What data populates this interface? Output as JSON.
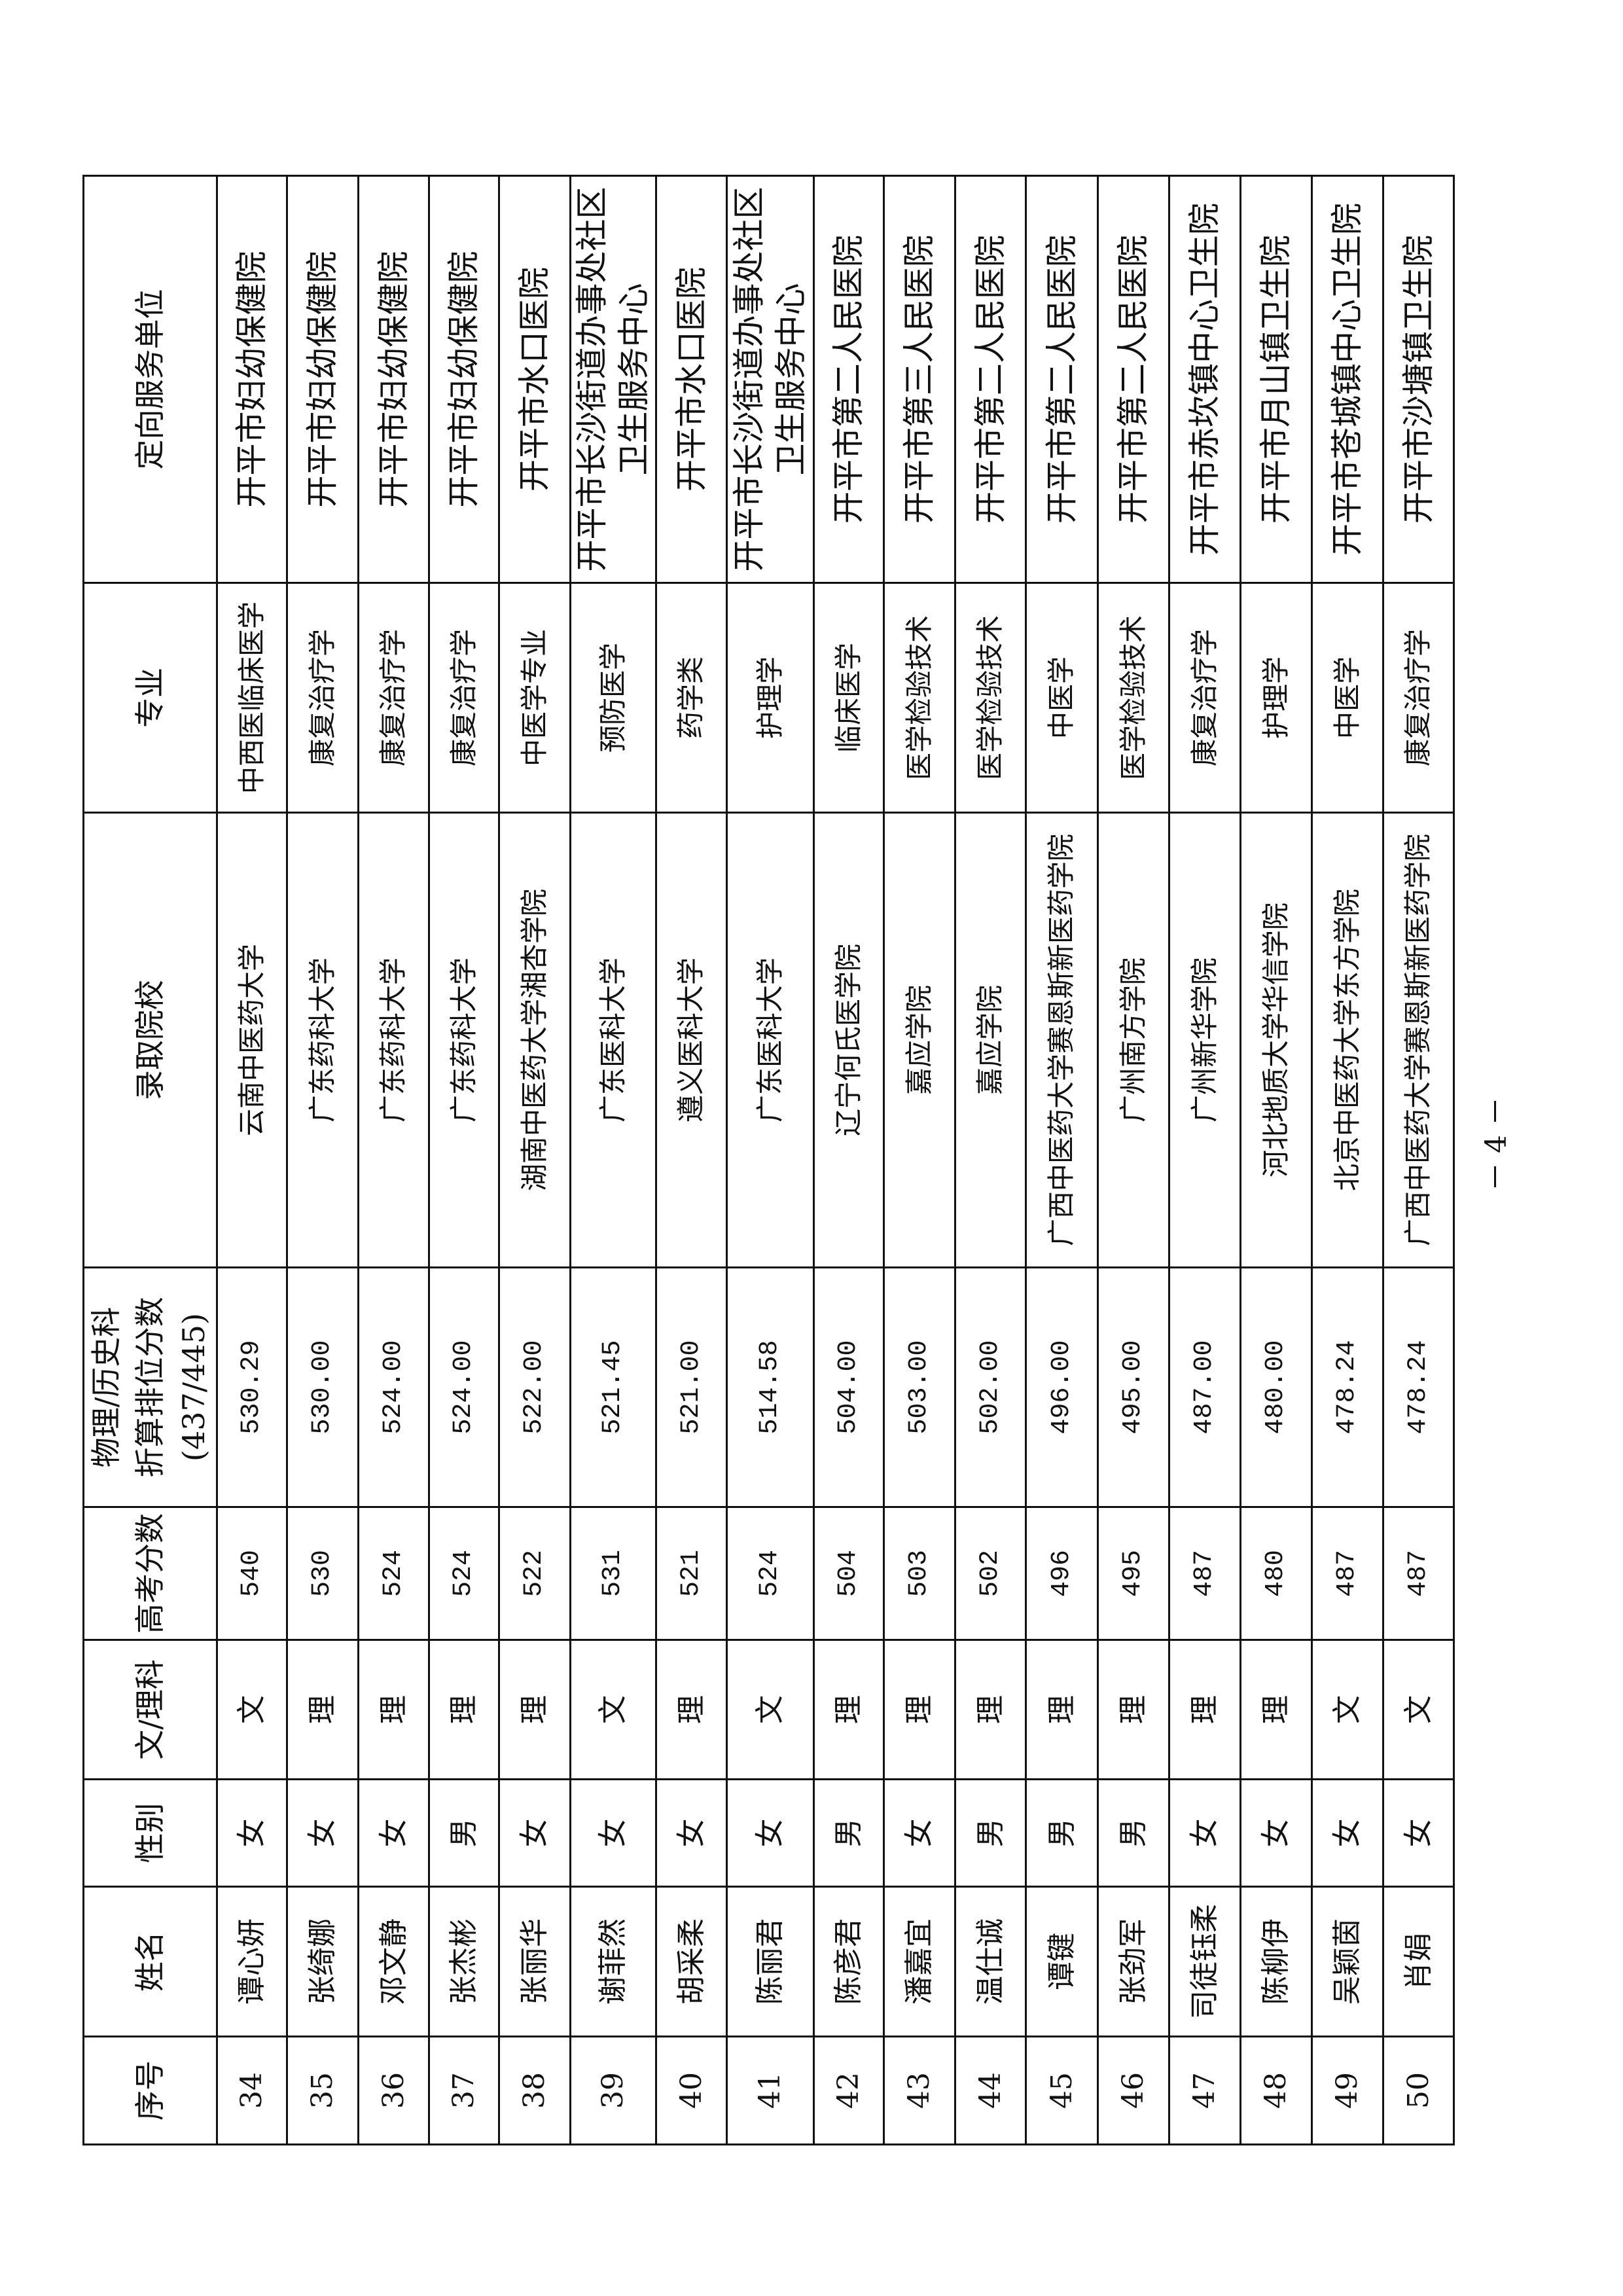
{
  "table": {
    "headers": {
      "index": "序号",
      "name": "姓名",
      "gender": "性别",
      "track": "文/理科",
      "score": "高考分数",
      "converted_line1": "物理/历史科",
      "converted_line2": "折算排位分数",
      "converted_line3": "(437/445)",
      "school": "录取院校",
      "major": "专业",
      "unit": "定向服务单位"
    },
    "rows": [
      {
        "index": "34",
        "name": "谭心妍",
        "gender": "女",
        "track": "文",
        "score": "540",
        "converted": "530.29",
        "school": "云南中医药大学",
        "major": "中西医临床医学",
        "unit": "开平市妇幼保健院"
      },
      {
        "index": "35",
        "name": "张绮娜",
        "gender": "女",
        "track": "理",
        "score": "530",
        "converted": "530.00",
        "school": "广东药科大学",
        "major": "康复治疗学",
        "unit": "开平市妇幼保健院"
      },
      {
        "index": "36",
        "name": "邓文静",
        "gender": "女",
        "track": "理",
        "score": "524",
        "converted": "524.00",
        "school": "广东药科大学",
        "major": "康复治疗学",
        "unit": "开平市妇幼保健院"
      },
      {
        "index": "37",
        "name": "张杰彬",
        "gender": "男",
        "track": "理",
        "score": "524",
        "converted": "524.00",
        "school": "广东药科大学",
        "major": "康复治疗学",
        "unit": "开平市妇幼保健院"
      },
      {
        "index": "38",
        "name": "张丽华",
        "gender": "女",
        "track": "理",
        "score": "522",
        "converted": "522.00",
        "school": "湖南中医药大学湘杏学院",
        "major": "中医学专业",
        "unit": "开平市水口医院"
      },
      {
        "index": "39",
        "name": "谢菲然",
        "gender": "女",
        "track": "文",
        "score": "531",
        "converted": "521.45",
        "school": "广东医科大学",
        "major": "预防医学",
        "unit": "开平市长沙街道办事处社区卫生服务中心"
      },
      {
        "index": "40",
        "name": "胡采柔",
        "gender": "女",
        "track": "理",
        "score": "521",
        "converted": "521.00",
        "school": "遵义医科大学",
        "major": "药学类",
        "unit": "开平市水口医院"
      },
      {
        "index": "41",
        "name": "陈丽君",
        "gender": "女",
        "track": "文",
        "score": "524",
        "converted": "514.58",
        "school": "广东医科大学",
        "major": "护理学",
        "unit": "开平市长沙街道办事处社区卫生服务中心"
      },
      {
        "index": "42",
        "name": "陈彦君",
        "gender": "男",
        "track": "理",
        "score": "504",
        "converted": "504.00",
        "school": "辽宁何氏医学院",
        "major": "临床医学",
        "unit": "开平市第二人民医院"
      },
      {
        "index": "43",
        "name": "潘嘉宜",
        "gender": "女",
        "track": "理",
        "score": "503",
        "converted": "503.00",
        "school": "嘉应学院",
        "major": "医学检验技术",
        "unit": "开平市第三人民医院"
      },
      {
        "index": "44",
        "name": "温仕诚",
        "gender": "男",
        "track": "理",
        "score": "502",
        "converted": "502.00",
        "school": "嘉应学院",
        "major": "医学检验技术",
        "unit": "开平市第二人民医院"
      },
      {
        "index": "45",
        "name": "谭键",
        "gender": "男",
        "track": "理",
        "score": "496",
        "converted": "496.00",
        "school": "广西中医药大学赛恩斯新医药学院",
        "major": "中医学",
        "unit": "开平市第二人民医院"
      },
      {
        "index": "46",
        "name": "张劲军",
        "gender": "男",
        "track": "理",
        "score": "495",
        "converted": "495.00",
        "school": "广州南方学院",
        "major": "医学检验技术",
        "unit": "开平市第二人民医院"
      },
      {
        "index": "47",
        "name": "司徒钰柔",
        "gender": "女",
        "track": "理",
        "score": "487",
        "converted": "487.00",
        "school": "广州新华学院",
        "major": "康复治疗学",
        "unit": "开平市赤坎镇中心卫生院"
      },
      {
        "index": "48",
        "name": "陈柳伊",
        "gender": "女",
        "track": "理",
        "score": "480",
        "converted": "480.00",
        "school": "河北地质大学华信学院",
        "major": "护理学",
        "unit": "开平市月山镇卫生院"
      },
      {
        "index": "49",
        "name": "吴颖茵",
        "gender": "女",
        "track": "文",
        "score": "487",
        "converted": "478.24",
        "school": "北京中医药大学东方学院",
        "major": "中医学",
        "unit": "开平市苍城镇中心卫生院"
      },
      {
        "index": "50",
        "name": "肖娟",
        "gender": "女",
        "track": "文",
        "score": "487",
        "converted": "478.24",
        "school": "广西中医药大学赛恩斯新医药学院",
        "major": "康复治疗学",
        "unit": "开平市沙塘镇卫生院"
      }
    ]
  },
  "footer": {
    "page_number": "－ 4 －"
  }
}
